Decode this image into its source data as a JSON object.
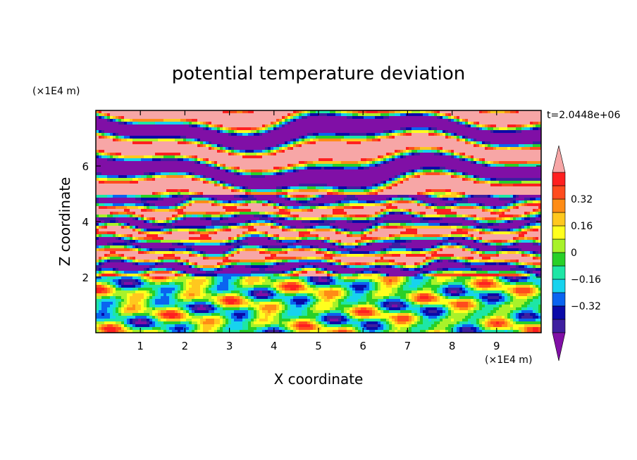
{
  "chart_data": {
    "type": "heatmap",
    "title": "potential temperature deviation",
    "xlabel": "X coordinate",
    "ylabel": "Z coordinate",
    "x_unit": "(×1E4 m)",
    "y_unit": "(×1E4 m)",
    "time_label": "t=2.0448e+06",
    "xlim": [
      0,
      10
    ],
    "ylim": [
      0,
      8
    ],
    "x_ticks": [
      1,
      2,
      3,
      4,
      5,
      6,
      7,
      8,
      9
    ],
    "y_ticks": [
      2,
      4,
      6
    ],
    "x_tick_labels": [
      "1",
      "2",
      "3",
      "4",
      "5",
      "6",
      "7",
      "8",
      "9"
    ],
    "y_tick_labels": [
      "2",
      "4",
      "6"
    ],
    "colorbar": {
      "levels": [
        -0.48,
        -0.4,
        -0.32,
        -0.24,
        -0.16,
        -0.08,
        0,
        0.08,
        0.16,
        0.24,
        0.32,
        0.4,
        0.48
      ],
      "tick_labels": [
        "0.32",
        "0.16",
        "0",
        "−0.16",
        "−0.32"
      ],
      "tick_values": [
        0.32,
        0.16,
        0,
        -0.16,
        -0.32
      ],
      "colors": [
        "#800fa6",
        "#3e1fa0",
        "#0a0aa8",
        "#0a64f0",
        "#17d3ee",
        "#1ee6a6",
        "#28d028",
        "#a8f22a",
        "#ffff1e",
        "#ffc81e",
        "#ff8c16",
        "#ff4c1e",
        "#ff2020",
        "#f7a6a6"
      ],
      "extend": "both"
    },
    "grid": false
  }
}
